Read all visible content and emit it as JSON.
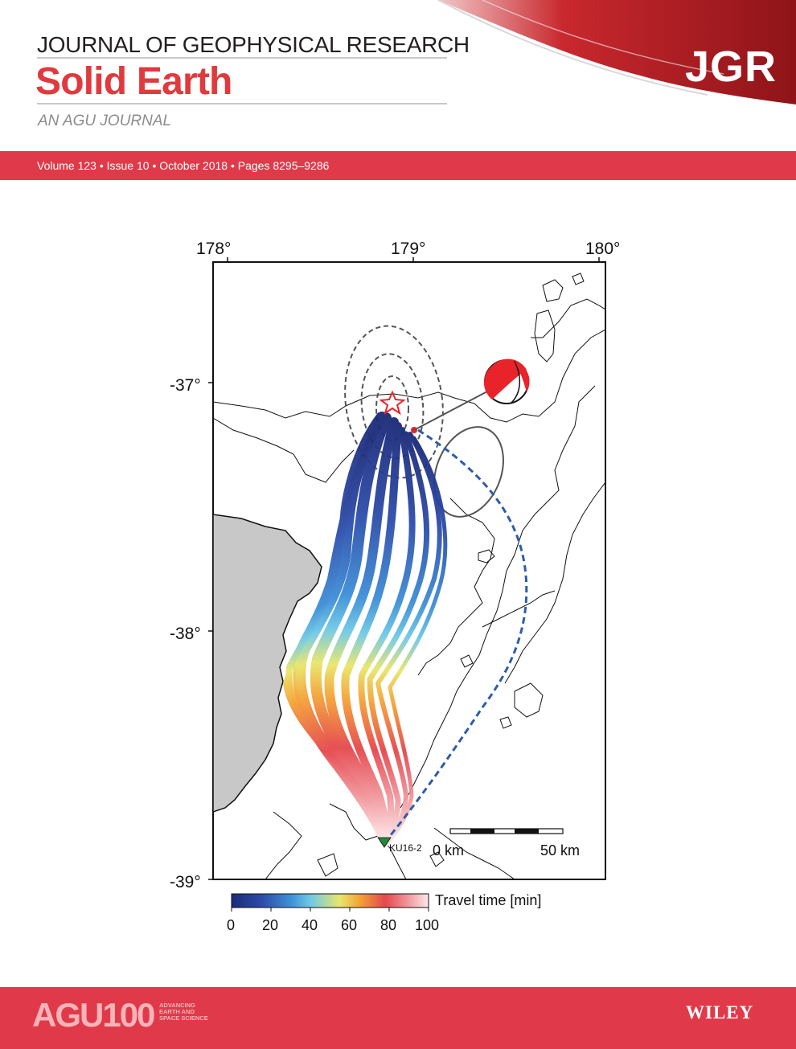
{
  "header": {
    "journal_title": "JOURNAL OF GEOPHYSICAL RESEARCH",
    "subtitle": "Solid Earth",
    "publisher_line": "AN AGU JOURNAL",
    "logo": "JGR",
    "issue_info": "Volume 123 • Issue 10 • October 2018 • Pages 8295–9286"
  },
  "map": {
    "lon_ticks": [
      "178°",
      "179°",
      "180°"
    ],
    "lat_ticks": [
      "-37°",
      "-38°",
      "-39°"
    ],
    "station_label": "KU16-2",
    "scale_bar": {
      "start": "0 km",
      "end": "50 km"
    },
    "colorbar": {
      "title": "Travel time [min]",
      "ticks": [
        "0",
        "20",
        "40",
        "60",
        "80",
        "100"
      ],
      "range": [
        0,
        100
      ]
    },
    "colors": {
      "land": "#c8c8c8",
      "epicenter": "#e8232a",
      "beachball": "#e8232a",
      "direct_path": "#2b5ea8",
      "station": "#1e8a3c"
    },
    "icons": {
      "epicenter": "star-icon",
      "station": "triangle-down-icon",
      "mechanism": "beachball-icon"
    }
  },
  "footer": {
    "society_logo": "AGU100",
    "society_tagline": "ADVANCING EARTH AND SPACE SCIENCE",
    "publisher_logo": "WILEY"
  }
}
